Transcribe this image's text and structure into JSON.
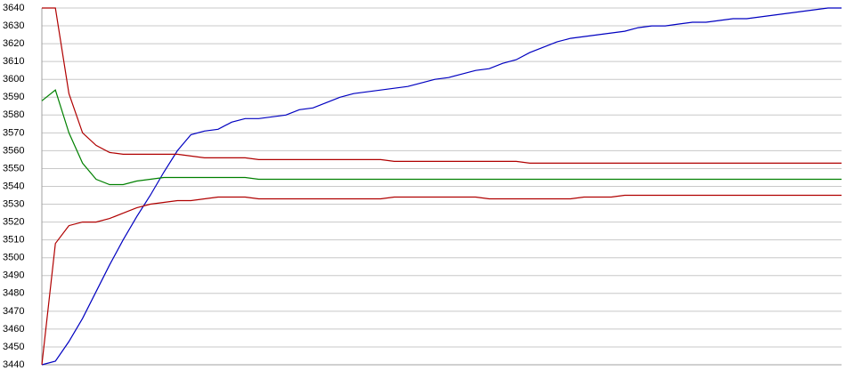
{
  "chart_data": {
    "type": "line",
    "categories": [
      null,
      null,
      null,
      null,
      null,
      null,
      null,
      null,
      null,
      null,
      null,
      null,
      null,
      null,
      null,
      null,
      null,
      null,
      null,
      null,
      null,
      null,
      null,
      null,
      null,
      null,
      null,
      null,
      null,
      null,
      null,
      null,
      null,
      null,
      null,
      null,
      null,
      null,
      null,
      null,
      null,
      null,
      null,
      null,
      null,
      null,
      null,
      null,
      null,
      null,
      null,
      null,
      null,
      null,
      null,
      null,
      null,
      null,
      null,
      null
    ],
    "series": [
      {
        "color": "#0000c0",
        "values": [
          3440,
          3442,
          3453,
          3466,
          3481,
          3496,
          3510,
          3523,
          3535,
          3548,
          3560,
          3569,
          3571,
          3572,
          3576,
          3578,
          3578,
          3579,
          3580,
          3583,
          3584,
          3587,
          3590,
          3592,
          3593,
          3594,
          3595,
          3596,
          3598,
          3600,
          3601,
          3603,
          3605,
          3606,
          3609,
          3611,
          3615,
          3618,
          3621,
          3623,
          3624,
          3625,
          3626,
          3627,
          3629,
          3630,
          3630,
          3631,
          3632,
          3632,
          3633,
          3634,
          3634,
          3635,
          3636,
          3637,
          3638,
          3639,
          3640,
          3640
        ]
      },
      {
        "color": "#b00000",
        "values": [
          3640,
          3640,
          3592,
          3570,
          3563,
          3559,
          3558,
          3558,
          3558,
          3558,
          3558,
          3557,
          3556,
          3556,
          3556,
          3556,
          3555,
          3555,
          3555,
          3555,
          3555,
          3555,
          3555,
          3555,
          3555,
          3555,
          3554,
          3554,
          3554,
          3554,
          3554,
          3554,
          3554,
          3554,
          3554,
          3554,
          3553,
          3553,
          3553,
          3553,
          3553,
          3553,
          3553,
          3553,
          3553,
          3553,
          3553,
          3553,
          3553,
          3553,
          3553,
          3553,
          3553,
          3553,
          3553,
          3553,
          3553,
          3553,
          3553,
          3553
        ]
      },
      {
        "color": "#008000",
        "values": [
          3588,
          3594,
          3570,
          3553,
          3544,
          3541,
          3541,
          3543,
          3544,
          3545,
          3545,
          3545,
          3545,
          3545,
          3545,
          3545,
          3544,
          3544,
          3544,
          3544,
          3544,
          3544,
          3544,
          3544,
          3544,
          3544,
          3544,
          3544,
          3544,
          3544,
          3544,
          3544,
          3544,
          3544,
          3544,
          3544,
          3544,
          3544,
          3544,
          3544,
          3544,
          3544,
          3544,
          3544,
          3544,
          3544,
          3544,
          3544,
          3544,
          3544,
          3544,
          3544,
          3544,
          3544,
          3544,
          3544,
          3544,
          3544,
          3544,
          3544
        ]
      },
      {
        "color": "#b00000",
        "values": [
          3440,
          3508,
          3518,
          3520,
          3520,
          3522,
          3525,
          3528,
          3530,
          3531,
          3532,
          3532,
          3533,
          3534,
          3534,
          3534,
          3533,
          3533,
          3533,
          3533,
          3533,
          3533,
          3533,
          3533,
          3533,
          3533,
          3534,
          3534,
          3534,
          3534,
          3534,
          3534,
          3534,
          3533,
          3533,
          3533,
          3533,
          3533,
          3533,
          3533,
          3534,
          3534,
          3534,
          3535,
          3535,
          3535,
          3535,
          3535,
          3535,
          3535,
          3535,
          3535,
          3535,
          3535,
          3535,
          3535,
          3535,
          3535,
          3535,
          3535
        ]
      }
    ],
    "ylim": [
      3440,
      3640
    ],
    "yticks": [
      3440,
      3450,
      3460,
      3470,
      3480,
      3490,
      3500,
      3510,
      3520,
      3530,
      3540,
      3550,
      3560,
      3570,
      3580,
      3590,
      3600,
      3610,
      3620,
      3630,
      3640
    ],
    "grid": true
  }
}
